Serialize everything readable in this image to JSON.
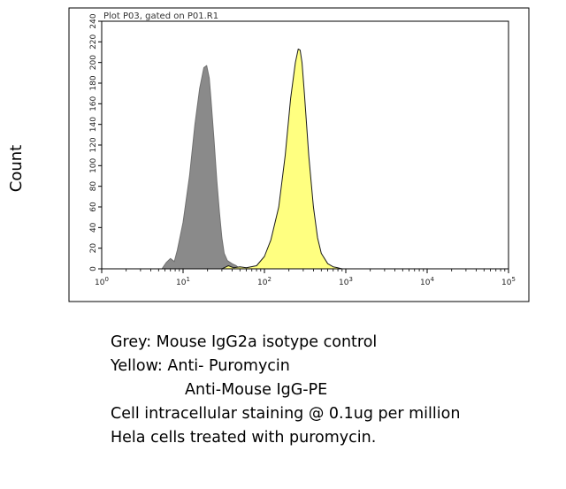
{
  "chart_data": {
    "type": "area",
    "title": "Plot P03, gated on P01.R1",
    "ylabel": "Count",
    "xlabel": "",
    "x_scale": "log",
    "xlim": [
      1,
      100000
    ],
    "ylim": [
      0,
      240
    ],
    "x_tick_labels": [
      {
        "base": "10",
        "exp": "0",
        "value": 1
      },
      {
        "base": "10",
        "exp": "1",
        "value": 10
      },
      {
        "base": "10",
        "exp": "2",
        "value": 100
      },
      {
        "base": "10",
        "exp": "3",
        "value": 1000
      },
      {
        "base": "10",
        "exp": "4",
        "value": 10000
      },
      {
        "base": "10",
        "exp": "5",
        "value": 100000
      }
    ],
    "y_tick_labels": [
      "0",
      "20",
      "40",
      "60",
      "80",
      "100",
      "120",
      "140",
      "160",
      "180",
      "200",
      "220",
      "240"
    ],
    "grid": false,
    "legend": "none",
    "series": [
      {
        "color": "#8a8a8a",
        "outline": "#707070",
        "x": [
          5.5,
          6.2,
          7,
          7.8,
          8.5,
          10,
          12,
          14,
          16,
          18,
          19.5,
          21,
          22,
          24,
          26,
          28,
          30,
          32,
          35,
          40,
          45,
          50
        ],
        "y": [
          0,
          6,
          10,
          7,
          18,
          45,
          90,
          140,
          175,
          195,
          197,
          185,
          165,
          125,
          85,
          55,
          30,
          15,
          8,
          5,
          3,
          0
        ]
      },
      {
        "color": "#ffff80",
        "outline": "#1a1a1a",
        "x": [
          30,
          36,
          42,
          50,
          60,
          80,
          100,
          120,
          150,
          180,
          210,
          240,
          260,
          275,
          290,
          310,
          350,
          400,
          450,
          500,
          600,
          700,
          800,
          900
        ],
        "y": [
          0,
          3,
          1,
          2,
          1,
          3,
          12,
          28,
          60,
          110,
          165,
          200,
          213,
          212,
          200,
          170,
          110,
          60,
          30,
          15,
          5,
          2,
          1,
          0
        ]
      }
    ]
  },
  "caption": {
    "line1": "Grey: Mouse IgG2a isotype control",
    "line2": "Yellow: Anti- Puromycin",
    "line3": "Anti-Mouse IgG-PE",
    "line4": "Cell intracellular staining @ 0.1ug per million",
    "line5": "Hela cells treated with puromycin."
  }
}
